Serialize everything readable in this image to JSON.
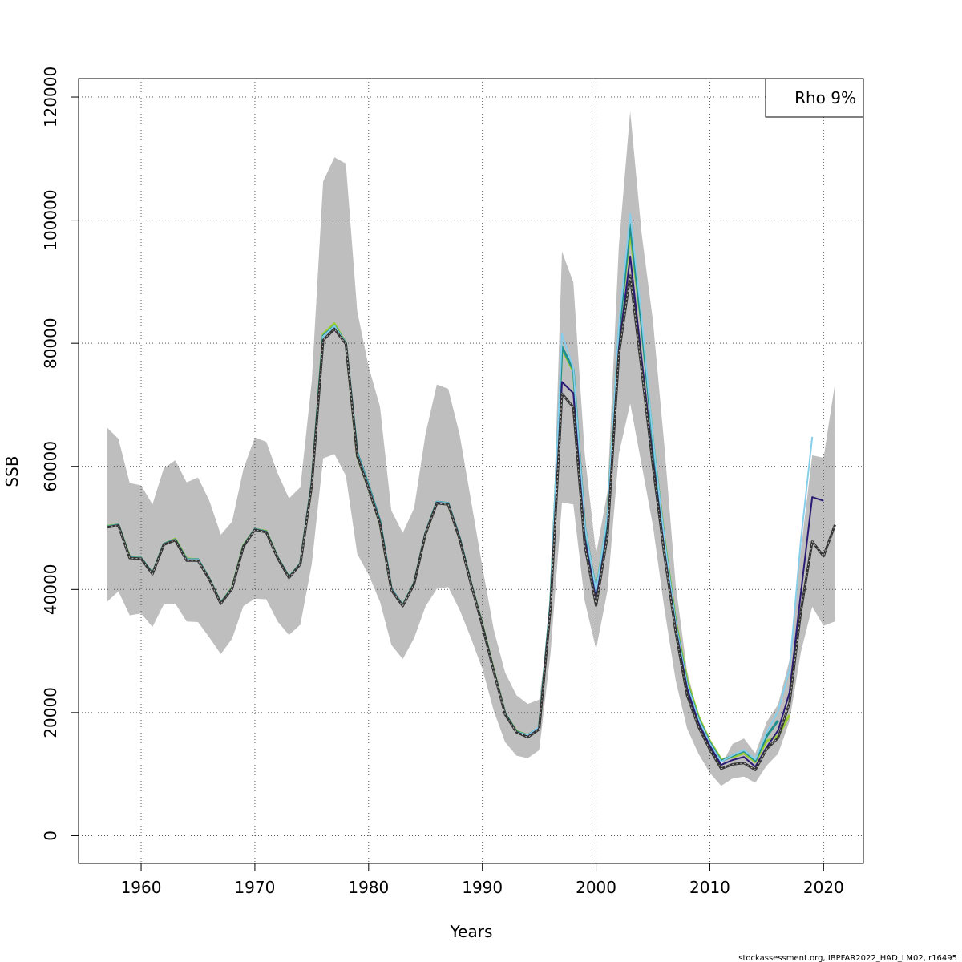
{
  "chart_data": {
    "type": "line",
    "title": "",
    "xlabel": "Years",
    "ylabel": "SSB",
    "xlim": [
      1954.5,
      2023.5
    ],
    "ylim": [
      -4500,
      123000
    ],
    "x_ticks": [
      1960,
      1970,
      1980,
      1990,
      2000,
      2010,
      2020
    ],
    "y_ticks": [
      0,
      20000,
      40000,
      60000,
      80000,
      100000,
      120000
    ],
    "x_tick_labels": [
      "1960",
      "1970",
      "1980",
      "1990",
      "2000",
      "2010",
      "2020"
    ],
    "y_tick_labels": [
      "0",
      "20000",
      "40000",
      "60000",
      "80000",
      "100000",
      "120000"
    ],
    "grid": true,
    "legend": {
      "text": "Rho 9%",
      "placement": "top-right"
    },
    "footer": "stockassessment.org, IBPFAR2022_HAD_LM02, r16495",
    "confidence_band": {
      "color": "#bebebe",
      "x": [
        1957,
        1958,
        1959,
        1960,
        1961,
        1962,
        1963,
        1964,
        1965,
        1966,
        1967,
        1968,
        1969,
        1970,
        1971,
        1972,
        1973,
        1974,
        1975,
        1976,
        1977,
        1978,
        1979,
        1980,
        1981,
        1982,
        1983,
        1984,
        1985,
        1986,
        1987,
        1988,
        1989,
        1990,
        1991,
        1992,
        1993,
        1994,
        1995,
        1996,
        1997,
        1998,
        1999,
        2000,
        2001,
        2002,
        2003,
        2004,
        2005,
        2006,
        2007,
        2008,
        2009,
        2010,
        2011,
        2012,
        2013,
        2014,
        2015,
        2016,
        2017,
        2018,
        2019,
        2020,
        2021
      ],
      "upper": [
        66300,
        64500,
        57300,
        56900,
        53800,
        59700,
        61000,
        57400,
        58200,
        54400,
        48900,
        51000,
        59600,
        64700,
        64000,
        58900,
        54800,
        56600,
        73800,
        106300,
        110200,
        109200,
        85200,
        76200,
        69700,
        52800,
        49200,
        53200,
        65200,
        73300,
        72600,
        65200,
        54500,
        43700,
        33500,
        26500,
        22800,
        21400,
        22100,
        36500,
        94900,
        89900,
        62000,
        45800,
        55900,
        95700,
        117700,
        97900,
        83600,
        63400,
        40700,
        26700,
        19500,
        15300,
        11400,
        14900,
        15800,
        13400,
        18500,
        21300,
        28500,
        46400,
        61800,
        61400,
        73400
      ],
      "lower": [
        38000,
        39700,
        35800,
        36100,
        33900,
        37600,
        37700,
        34800,
        34700,
        32200,
        29500,
        32000,
        37300,
        38500,
        38400,
        34800,
        32600,
        34300,
        44100,
        61300,
        62000,
        58500,
        45800,
        42400,
        38000,
        31000,
        28700,
        32100,
        37200,
        40100,
        40400,
        36700,
        32100,
        27100,
        20300,
        15200,
        13000,
        12600,
        13900,
        29700,
        54100,
        53800,
        38100,
        30300,
        39800,
        62000,
        70200,
        60300,
        50300,
        36900,
        25200,
        17400,
        13300,
        10200,
        8100,
        9300,
        9600,
        8600,
        11400,
        13300,
        18600,
        29800,
        37200,
        34100,
        34800
      ]
    },
    "series": [
      {
        "color": "#9acd32",
        "width": 3,
        "dashed": false,
        "x": [
          1957,
          1958,
          1959,
          1960,
          1961,
          1962,
          1963,
          1964,
          1965,
          1966,
          1967,
          1968,
          1969,
          1970,
          1971,
          1972,
          1973,
          1974,
          1975,
          1976,
          1977,
          1978,
          1979,
          1980,
          1981,
          1982,
          1983,
          1984,
          1985,
          1986,
          1987,
          1988,
          1989,
          1990,
          1991,
          1992,
          1993,
          1994,
          1995,
          1996,
          1997,
          1998,
          1999,
          2000,
          2001,
          2002,
          2003,
          2004,
          2005,
          2006,
          2007,
          2008,
          2009,
          2010,
          2011,
          2012,
          2013,
          2014,
          2015,
          2016,
          2017
        ],
        "y": [
          50300,
          50500,
          45300,
          45100,
          42600,
          47400,
          48200,
          45000,
          44900,
          41700,
          37800,
          40300,
          47200,
          49800,
          49500,
          45200,
          42000,
          44200,
          57000,
          81500,
          83200,
          80000,
          61600,
          56400,
          50700,
          40000,
          37400,
          41000,
          49000,
          54100,
          53800,
          48300,
          41000,
          34300,
          26900,
          19800,
          17000,
          16300,
          17500,
          37600,
          79100,
          75400,
          50000,
          39700,
          51700,
          81800,
          98000,
          82900,
          64000,
          48400,
          34900,
          25300,
          19400,
          15400,
          12400,
          12800,
          13400,
          12000,
          15400,
          16200,
          19600
        ]
      },
      {
        "color": "#1f8e8e",
        "width": 3,
        "dashed": false,
        "x": [
          1957,
          1958,
          1959,
          1960,
          1961,
          1962,
          1963,
          1964,
          1965,
          1966,
          1967,
          1968,
          1969,
          1970,
          1971,
          1972,
          1973,
          1974,
          1975,
          1976,
          1977,
          1978,
          1979,
          1980,
          1981,
          1982,
          1983,
          1984,
          1985,
          1986,
          1987,
          1988,
          1989,
          1990,
          1991,
          1992,
          1993,
          1994,
          1995,
          1996,
          1997,
          1998,
          1999,
          2000,
          2001,
          2002,
          2003,
          2004,
          2005,
          2006,
          2007,
          2008,
          2009,
          2010,
          2011,
          2012,
          2013,
          2014,
          2015,
          2016
        ],
        "y": [
          50200,
          50500,
          45200,
          45100,
          42600,
          47400,
          48100,
          44900,
          44900,
          41700,
          37800,
          40200,
          47100,
          49800,
          49400,
          45200,
          42000,
          44200,
          57200,
          81200,
          82800,
          80000,
          62200,
          56900,
          51100,
          40100,
          37400,
          41000,
          49100,
          54200,
          54000,
          48400,
          41000,
          34200,
          26800,
          19800,
          16900,
          16300,
          17600,
          37900,
          79400,
          75700,
          50200,
          39600,
          51500,
          81600,
          99300,
          83000,
          64000,
          48000,
          34400,
          24600,
          19000,
          15100,
          12100,
          13000,
          13800,
          12200,
          16200,
          18700
        ]
      },
      {
        "color": "#87ceeb",
        "width": 2,
        "dashed": false,
        "x": [
          1957,
          1958,
          1959,
          1960,
          1961,
          1962,
          1963,
          1964,
          1965,
          1966,
          1967,
          1968,
          1969,
          1970,
          1971,
          1972,
          1973,
          1974,
          1975,
          1976,
          1977,
          1978,
          1979,
          1980,
          1981,
          1982,
          1983,
          1984,
          1985,
          1986,
          1987,
          1988,
          1989,
          1990,
          1991,
          1992,
          1993,
          1994,
          1995,
          1996,
          1997,
          1998,
          1999,
          2000,
          2001,
          2002,
          2003,
          2004,
          2005,
          2006,
          2007,
          2008,
          2009,
          2010,
          2011,
          2012,
          2013,
          2014,
          2015,
          2016,
          2017,
          2018,
          2019
        ],
        "y": [
          50200,
          50500,
          45200,
          45100,
          42600,
          47400,
          48100,
          44900,
          44900,
          41700,
          37800,
          40200,
          47100,
          49800,
          49400,
          45200,
          42000,
          44200,
          57100,
          81100,
          82800,
          80000,
          62100,
          56800,
          51000,
          40100,
          37400,
          41000,
          49100,
          54200,
          54000,
          48400,
          41000,
          34200,
          26800,
          19800,
          16900,
          16300,
          17700,
          38200,
          81500,
          76000,
          50400,
          39700,
          52200,
          82800,
          101000,
          84300,
          64400,
          48200,
          34400,
          24600,
          18900,
          15000,
          12000,
          13100,
          13900,
          12400,
          16800,
          20200,
          27000,
          48000,
          64800
        ]
      },
      {
        "color": "#2b1a73",
        "width": 2,
        "dashed": false,
        "x": [
          1957,
          1958,
          1959,
          1960,
          1961,
          1962,
          1963,
          1964,
          1965,
          1966,
          1967,
          1968,
          1969,
          1970,
          1971,
          1972,
          1973,
          1974,
          1975,
          1976,
          1977,
          1978,
          1979,
          1980,
          1981,
          1982,
          1983,
          1984,
          1985,
          1986,
          1987,
          1988,
          1989,
          1990,
          1991,
          1992,
          1993,
          1994,
          1995,
          1996,
          1997,
          1998,
          1999,
          2000,
          2001,
          2002,
          2003,
          2004,
          2005,
          2006,
          2007,
          2008,
          2009,
          2010,
          2011,
          2012,
          2013,
          2014,
          2015,
          2016,
          2017,
          2018,
          2019,
          2020
        ],
        "y": [
          50100,
          50400,
          45100,
          45000,
          42500,
          47300,
          48000,
          44700,
          44700,
          41600,
          37700,
          40100,
          47000,
          49700,
          49300,
          45100,
          41900,
          44100,
          57000,
          80500,
          82400,
          79900,
          61900,
          56600,
          50900,
          40000,
          37300,
          40900,
          49000,
          54100,
          53900,
          48300,
          40900,
          34100,
          26700,
          19700,
          16800,
          16100,
          17400,
          37400,
          73700,
          71900,
          48300,
          38300,
          49600,
          79100,
          94100,
          77500,
          61100,
          46400,
          33700,
          23900,
          18300,
          14600,
          11500,
          12300,
          12800,
          11200,
          14400,
          17100,
          23200,
          39400,
          55000,
          54400
        ]
      },
      {
        "color": "#333333",
        "width": 2.5,
        "dashed": true,
        "x": [
          1957,
          1958,
          1959,
          1960,
          1961,
          1962,
          1963,
          1964,
          1965,
          1966,
          1967,
          1968,
          1969,
          1970,
          1971,
          1972,
          1973,
          1974,
          1975,
          1976,
          1977,
          1978,
          1979,
          1980,
          1981,
          1982,
          1983,
          1984,
          1985,
          1986,
          1987,
          1988,
          1989,
          1990,
          1991,
          1992,
          1993,
          1994,
          1995,
          1996,
          1997,
          1998,
          1999,
          2000,
          2001,
          2002,
          2003,
          2004,
          2005,
          2006,
          2007,
          2008,
          2009,
          2010,
          2011,
          2012,
          2013,
          2014,
          2015,
          2016,
          2017,
          2018,
          2019,
          2020,
          2021
        ],
        "y": [
          50100,
          50400,
          45100,
          45000,
          42500,
          47300,
          48000,
          44700,
          44700,
          41600,
          37700,
          40100,
          47000,
          49700,
          49300,
          45100,
          41900,
          44100,
          56900,
          80500,
          82300,
          79900,
          61700,
          56400,
          50700,
          39900,
          37300,
          40900,
          49000,
          54000,
          53800,
          48200,
          40900,
          34100,
          26700,
          19700,
          16800,
          16000,
          17300,
          37100,
          71800,
          69600,
          47200,
          37400,
          48800,
          78200,
          91000,
          75800,
          60000,
          45700,
          33100,
          22800,
          17700,
          14000,
          10900,
          11600,
          11800,
          10700,
          14100,
          15900,
          21500,
          36400,
          47800,
          45400,
          50500
        ]
      }
    ]
  }
}
